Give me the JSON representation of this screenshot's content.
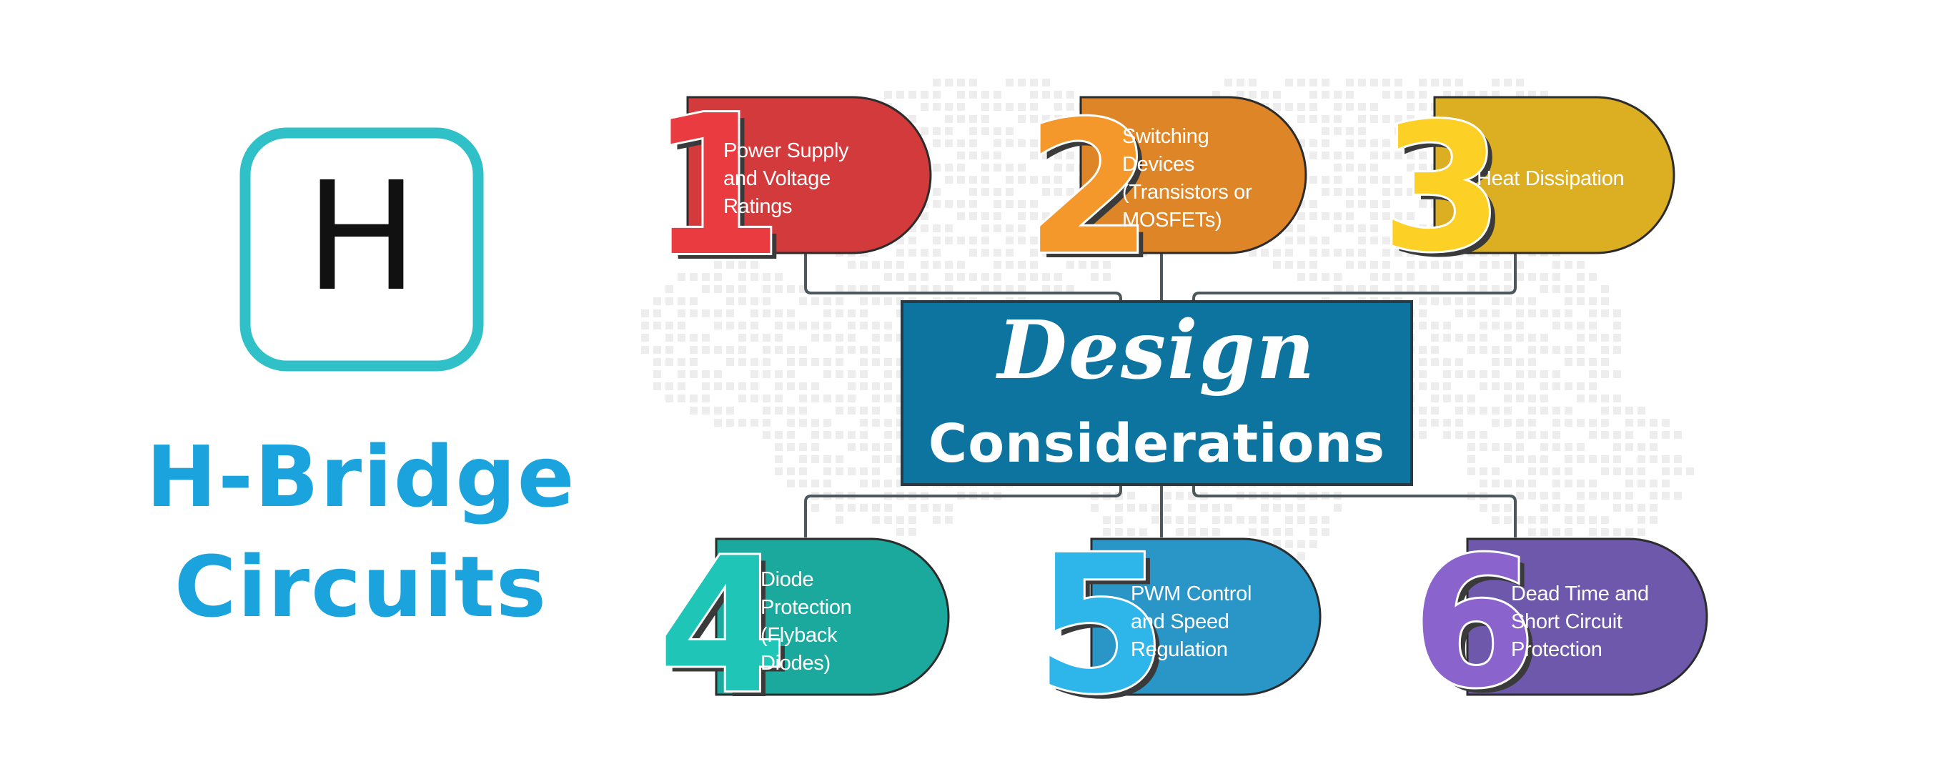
{
  "brand": {
    "icon_letter": "H",
    "title_line1": "H-Bridge",
    "title_line2": "Circuits"
  },
  "center": {
    "line1": "Design",
    "line2": "Considerations"
  },
  "colors": {
    "brand": "#1aa3dd",
    "icon_border": "#30c1c8",
    "center_box": "#0d749f",
    "connector": "#4d585c"
  },
  "items": [
    {
      "number": "1",
      "lines": [
        "Power Supply",
        "and Voltage",
        "Ratings"
      ],
      "color": "#d23a3b",
      "number_color": "#ea3c40"
    },
    {
      "number": "2",
      "lines": [
        "Switching",
        "Devices",
        "(Transistors or",
        "MOSFETs)"
      ],
      "color": "#dd8527",
      "number_color": "#f4982c"
    },
    {
      "number": "3",
      "lines": [
        "Heat Dissipation"
      ],
      "color": "#dbaf21",
      "number_color": "#fcd025"
    },
    {
      "number": "4",
      "lines": [
        "Diode",
        "Protection",
        "(Flyback",
        "Diodes)"
      ],
      "color": "#1ba99d",
      "number_color": "#1fc6b8"
    },
    {
      "number": "5",
      "lines": [
        "PWM Control",
        "and Speed",
        "Regulation"
      ],
      "color": "#2a96c8",
      "number_color": "#2eb6ea"
    },
    {
      "number": "6",
      "lines": [
        "Dead Time and",
        "Short Circuit",
        "Protection"
      ],
      "color": "#6e58ac",
      "number_color": "#8a63cc"
    }
  ]
}
